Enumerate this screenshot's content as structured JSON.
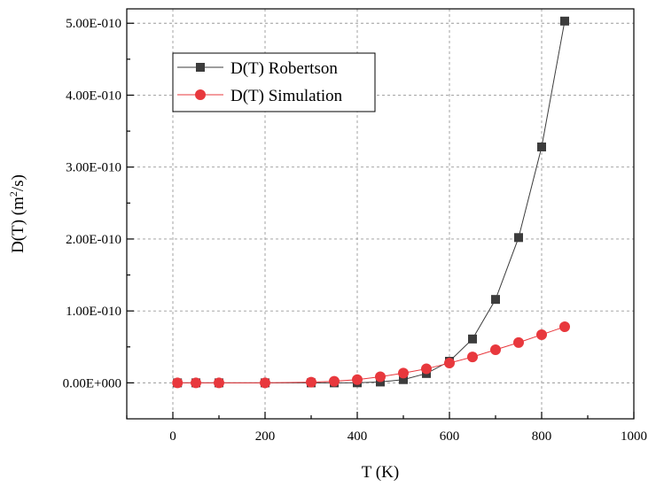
{
  "chart_data": {
    "type": "line",
    "xlabel": "T (K)",
    "ylabel_main": "D(T) (m",
    "ylabel_sup": "2",
    "ylabel_end": "/s)",
    "xlim": [
      -100,
      1000
    ],
    "ylim": [
      -5e-11,
      5.2e-10
    ],
    "x_ticks": [
      0,
      200,
      400,
      600,
      800,
      1000
    ],
    "x_tick_labels": [
      "0",
      "200",
      "400",
      "600",
      "800",
      "1000"
    ],
    "y_ticks": [
      0,
      1e-10,
      2e-10,
      3e-10,
      4e-10,
      5e-10
    ],
    "y_tick_labels": [
      "0.00E+000",
      "1.00E-010",
      "2.00E-010",
      "3.00E-010",
      "4.00E-010",
      "5.00E-010"
    ],
    "grid": true,
    "legend_position": "top-left",
    "series": [
      {
        "name": "D(T) Robertson",
        "color": "#3c3c3c",
        "marker": "square",
        "x": [
          10,
          50,
          100,
          200,
          300,
          350,
          400,
          450,
          500,
          550,
          600,
          650,
          700,
          750,
          800,
          850
        ],
        "values": [
          0,
          0,
          0,
          0,
          0,
          0,
          1e-13,
          1.2e-12,
          4.5e-12,
          1.3e-11,
          3e-11,
          6.1e-11,
          1.16e-10,
          2.02e-10,
          3.28e-10,
          5.03e-10
        ]
      },
      {
        "name": "D(T) Simulation",
        "color": "#e8383d",
        "marker": "circle",
        "x": [
          10,
          50,
          100,
          200,
          300,
          350,
          400,
          450,
          500,
          550,
          600,
          650,
          700,
          750,
          800,
          850
        ],
        "values": [
          0,
          0,
          0,
          0,
          1e-12,
          2.2e-12,
          4.5e-12,
          8.5e-12,
          1.35e-11,
          1.95e-11,
          2.75e-11,
          3.6e-11,
          4.6e-11,
          5.6e-11,
          6.7e-11,
          7.8e-11
        ]
      }
    ]
  }
}
